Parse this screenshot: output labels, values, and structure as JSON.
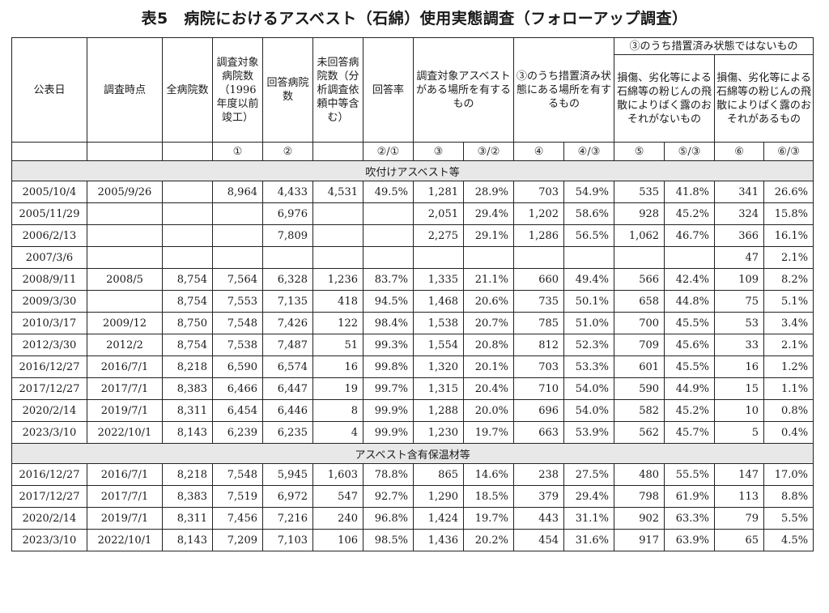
{
  "title": "表5　病院におけるアスベスト（石綿）使用実態調査（フォローアップ調査）",
  "headers": {
    "publish_date": "公表日",
    "survey_time": "調査時点",
    "total_hospitals": "全病院数",
    "target_hospitals": "調査対象病院数（1996年度以前竣工）",
    "responding_hospitals": "回答病院数",
    "unanswered_hospitals": "未回答病院数（分析調査依頼中等含む）",
    "response_rate": "回答率",
    "asbestos_sites": "調査対象アスベストがある場所を有するもの",
    "untreated_sites": "③のうち措置済み状態にある場所を有するもの",
    "not_treated_group": "③のうち措置済み状態ではないもの",
    "no_risk": "損傷、劣化等による石綿等の粉じんの飛散によりばく露のおそれがないもの",
    "risk": "損傷、劣化等による石綿等の粉じんの飛散によりばく露のおそれがあるもの"
  },
  "subheaders": [
    "",
    "",
    "",
    "①",
    "②",
    "",
    "②/①",
    "③",
    "③/②",
    "④",
    "④/③",
    "⑤",
    "⑤/③",
    "⑥",
    "⑥/③"
  ],
  "sections": [
    {
      "label": "吹付けアスベスト等",
      "rows": [
        [
          "2005/10/4",
          "2005/9/26",
          "",
          "8,964",
          "4,433",
          "4,531",
          "49.5%",
          "1,281",
          "28.9%",
          "703",
          "54.9%",
          "535",
          "41.8%",
          "341",
          "26.6%"
        ],
        [
          "2005/11/29",
          "",
          "",
          "",
          "6,976",
          "",
          "",
          "2,051",
          "29.4%",
          "1,202",
          "58.6%",
          "928",
          "45.2%",
          "324",
          "15.8%"
        ],
        [
          "2006/2/13",
          "",
          "",
          "",
          "7,809",
          "",
          "",
          "2,275",
          "29.1%",
          "1,286",
          "56.5%",
          "1,062",
          "46.7%",
          "366",
          "16.1%"
        ],
        [
          "2007/3/6",
          "",
          "",
          "",
          "",
          "",
          "",
          "",
          "",
          "",
          "",
          "",
          "",
          "47",
          "2.1%"
        ],
        [
          "2008/9/11",
          "2008/5",
          "8,754",
          "7,564",
          "6,328",
          "1,236",
          "83.7%",
          "1,335",
          "21.1%",
          "660",
          "49.4%",
          "566",
          "42.4%",
          "109",
          "8.2%"
        ],
        [
          "2009/3/30",
          "",
          "8,754",
          "7,553",
          "7,135",
          "418",
          "94.5%",
          "1,468",
          "20.6%",
          "735",
          "50.1%",
          "658",
          "44.8%",
          "75",
          "5.1%"
        ],
        [
          "2010/3/17",
          "2009/12",
          "8,750",
          "7,548",
          "7,426",
          "122",
          "98.4%",
          "1,538",
          "20.7%",
          "785",
          "51.0%",
          "700",
          "45.5%",
          "53",
          "3.4%"
        ],
        [
          "2012/3/30",
          "2012/2",
          "8,754",
          "7,538",
          "7,487",
          "51",
          "99.3%",
          "1,554",
          "20.8%",
          "812",
          "52.3%",
          "709",
          "45.6%",
          "33",
          "2.1%"
        ],
        [
          "2016/12/27",
          "2016/7/1",
          "8,218",
          "6,590",
          "6,574",
          "16",
          "99.8%",
          "1,320",
          "20.1%",
          "703",
          "53.3%",
          "601",
          "45.5%",
          "16",
          "1.2%"
        ],
        [
          "2017/12/27",
          "2017/7/1",
          "8,383",
          "6,466",
          "6,447",
          "19",
          "99.7%",
          "1,315",
          "20.4%",
          "710",
          "54.0%",
          "590",
          "44.9%",
          "15",
          "1.1%"
        ],
        [
          "2020/2/14",
          "2019/7/1",
          "8,311",
          "6,454",
          "6,446",
          "8",
          "99.9%",
          "1,288",
          "20.0%",
          "696",
          "54.0%",
          "582",
          "45.2%",
          "10",
          "0.8%"
        ],
        [
          "2023/3/10",
          "2022/10/1",
          "8,143",
          "6,239",
          "6,235",
          "4",
          "99.9%",
          "1,230",
          "19.7%",
          "663",
          "53.9%",
          "562",
          "45.7%",
          "5",
          "0.4%"
        ]
      ]
    },
    {
      "label": "アスベスト含有保温材等",
      "rows": [
        [
          "2016/12/27",
          "2016/7/1",
          "8,218",
          "7,548",
          "5,945",
          "1,603",
          "78.8%",
          "865",
          "14.6%",
          "238",
          "27.5%",
          "480",
          "55.5%",
          "147",
          "17.0%"
        ],
        [
          "2017/12/27",
          "2017/7/1",
          "8,383",
          "7,519",
          "6,972",
          "547",
          "92.7%",
          "1,290",
          "18.5%",
          "379",
          "29.4%",
          "798",
          "61.9%",
          "113",
          "8.8%"
        ],
        [
          "2020/2/14",
          "2019/7/1",
          "8,311",
          "7,456",
          "7,216",
          "240",
          "96.8%",
          "1,424",
          "19.7%",
          "443",
          "31.1%",
          "902",
          "63.3%",
          "79",
          "5.5%"
        ],
        [
          "2023/3/10",
          "2022/10/1",
          "8,143",
          "7,209",
          "7,103",
          "106",
          "98.5%",
          "1,436",
          "20.2%",
          "454",
          "31.6%",
          "917",
          "63.9%",
          "65",
          "4.5%"
        ]
      ]
    }
  ]
}
